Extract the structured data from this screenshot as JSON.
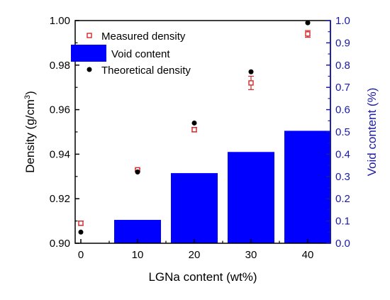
{
  "chart_data": {
    "type": "bar+scatter",
    "xlabel": "LGNa content (wt%)",
    "ylabel_left": "Density (g/cm",
    "ylabel_left_sup": "3",
    "ylabel_left_close": ")",
    "ylabel_right": "Void content (%)",
    "xlim": [
      -1,
      44
    ],
    "ylim_left": [
      0.9,
      1.0
    ],
    "ylim_right": [
      0.0,
      1.0
    ],
    "x_ticks": [
      0,
      10,
      20,
      30,
      40
    ],
    "x_tick_labels": [
      "0",
      "10",
      "20",
      "30",
      "40"
    ],
    "y_left_ticks": [
      "0.90",
      "0.92",
      "0.94",
      "0.96",
      "0.98",
      "1.00"
    ],
    "y_right_ticks": [
      "0.0",
      "0.1",
      "0.2",
      "0.3",
      "0.4",
      "0.5",
      "0.6",
      "0.7",
      "0.8",
      "0.9",
      "1.0"
    ],
    "grid": false,
    "legend_position": "top-left",
    "series": [
      {
        "name": "Measured density",
        "kind": "scatter-errorbar",
        "axis": "left",
        "color": "#d62728",
        "marker": "open-square",
        "x": [
          0,
          10,
          20,
          30,
          40
        ],
        "y": [
          0.909,
          0.933,
          0.951,
          0.972,
          0.994
        ],
        "error": [
          0.001,
          0.0005,
          0.001,
          0.003,
          0.0015
        ]
      },
      {
        "name": "Void content",
        "kind": "bar",
        "axis": "right",
        "color": "#0000ff",
        "x": [
          0,
          10,
          20,
          30,
          40
        ],
        "y": [
          0.0,
          0.105,
          0.315,
          0.41,
          0.505
        ]
      },
      {
        "name": "Theoretical density",
        "kind": "scatter",
        "axis": "left",
        "color": "#000000",
        "marker": "filled-circle",
        "x": [
          0,
          10,
          20,
          30,
          40
        ],
        "y": [
          0.905,
          0.932,
          0.954,
          0.977,
          0.999
        ]
      }
    ],
    "right_axis_color": "#1a1aa6"
  }
}
